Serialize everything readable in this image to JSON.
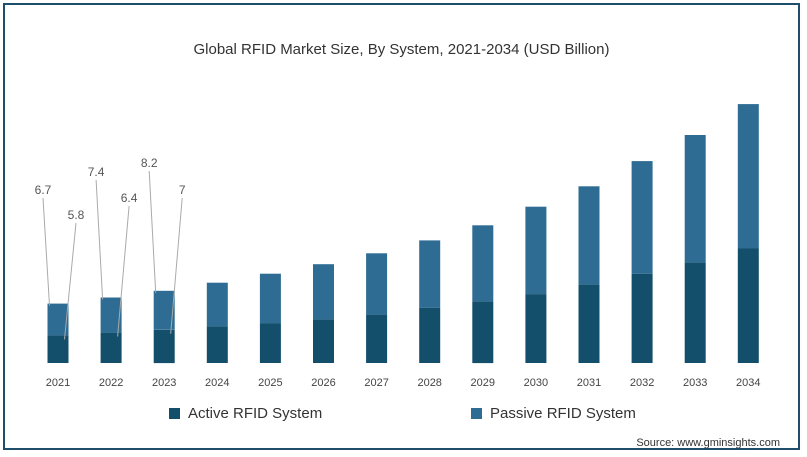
{
  "chart_data": {
    "type": "bar",
    "stacked": true,
    "title": "Global RFID Market Size, By System, 2021-2034 (USD Billion)",
    "xlabel": "",
    "ylabel": "",
    "categories": [
      "2021",
      "2022",
      "2023",
      "2024",
      "2025",
      "2026",
      "2027",
      "2028",
      "2029",
      "2030",
      "2031",
      "2032",
      "2033",
      "2034"
    ],
    "series": [
      {
        "name": "Active RFID System",
        "color": "#134f6b",
        "values": [
          5.8,
          6.4,
          7.0,
          7.7,
          8.4,
          9.2,
          10.2,
          11.6,
          13.0,
          14.5,
          16.5,
          18.8,
          21.2,
          24.1
        ]
      },
      {
        "name": "Passive RFID System",
        "color": "#2e6c93",
        "values": [
          6.7,
          7.4,
          8.2,
          9.2,
          10.4,
          11.6,
          12.9,
          14.2,
          16.0,
          18.4,
          20.7,
          23.7,
          26.8,
          30.4
        ]
      }
    ],
    "data_labels": [
      {
        "text": "6.7",
        "category": "2021",
        "series": "Passive RFID System"
      },
      {
        "text": "5.8",
        "category": "2021",
        "series": "Active RFID System"
      },
      {
        "text": "7.4",
        "category": "2022",
        "series": "Passive RFID System"
      },
      {
        "text": "6.4",
        "category": "2022",
        "series": "Active RFID System"
      },
      {
        "text": "8.2",
        "category": "2023",
        "series": "Passive RFID System"
      },
      {
        "text": "7",
        "category": "2023",
        "series": "Active RFID System"
      }
    ],
    "ylim": [
      0,
      56
    ],
    "grid": false,
    "legend": "bottom"
  },
  "source": "Source: www.gminsights.com"
}
